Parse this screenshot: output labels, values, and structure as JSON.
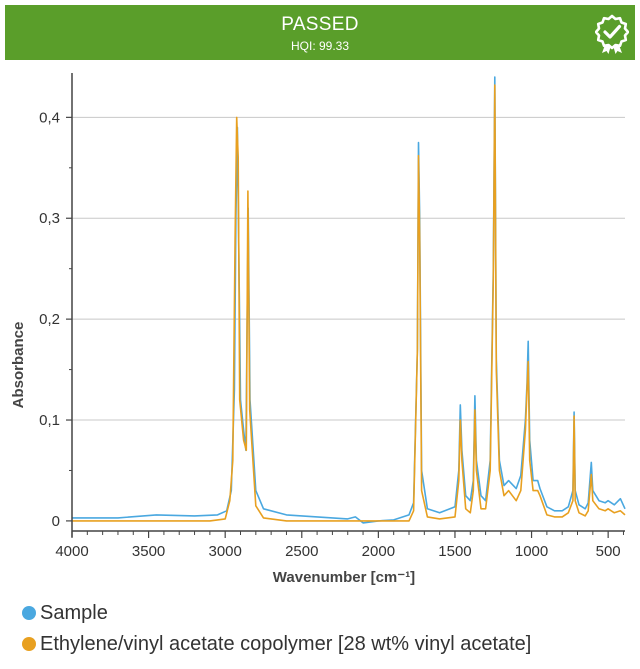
{
  "banner": {
    "status": "PASSED",
    "subtitle": "HQI: 99.33",
    "icon": "certified-badge-icon",
    "background": "#5a9e2a"
  },
  "chart_data": {
    "type": "line",
    "title": "",
    "xlabel": "Wavenumber [cm⁻¹]",
    "ylabel": "Absorbance",
    "xlim": [
      4000,
      390
    ],
    "ylim": [
      -0.01,
      0.44
    ],
    "x_inverted": true,
    "grid": true,
    "x_ticks": [
      4000,
      3500,
      3000,
      2500,
      2000,
      1500,
      1000,
      500
    ],
    "x_tick_labels": [
      "4000",
      "3500",
      "3000",
      "2500",
      "2000",
      "1500",
      "1000",
      "500"
    ],
    "y_ticks": [
      0,
      0.1,
      0.2,
      0.3,
      0.4
    ],
    "y_tick_labels": [
      "0",
      "0,1",
      "0,2",
      "0,3",
      "0,4"
    ],
    "legend_position": "bottom-left",
    "series": [
      {
        "name": "Sample",
        "color": "#4aa8e0",
        "points": [
          [
            4000,
            0.003
          ],
          [
            3700,
            0.003
          ],
          [
            3450,
            0.006
          ],
          [
            3200,
            0.005
          ],
          [
            3050,
            0.006
          ],
          [
            2990,
            0.01
          ],
          [
            2960,
            0.03
          ],
          [
            2940,
            0.13
          ],
          [
            2930,
            0.3
          ],
          [
            2920,
            0.39
          ],
          [
            2900,
            0.12
          ],
          [
            2880,
            0.09
          ],
          [
            2865,
            0.07
          ],
          [
            2850,
            0.31
          ],
          [
            2838,
            0.12
          ],
          [
            2800,
            0.03
          ],
          [
            2750,
            0.012
          ],
          [
            2600,
            0.006
          ],
          [
            2400,
            0.004
          ],
          [
            2200,
            0.002
          ],
          [
            2150,
            0.004
          ],
          [
            2100,
            -0.002
          ],
          [
            2000,
            0.0
          ],
          [
            1900,
            0.001
          ],
          [
            1800,
            0.006
          ],
          [
            1770,
            0.018
          ],
          [
            1745,
            0.17
          ],
          [
            1738,
            0.375
          ],
          [
            1730,
            0.3
          ],
          [
            1718,
            0.05
          ],
          [
            1680,
            0.012
          ],
          [
            1600,
            0.008
          ],
          [
            1500,
            0.014
          ],
          [
            1475,
            0.05
          ],
          [
            1465,
            0.115
          ],
          [
            1455,
            0.07
          ],
          [
            1430,
            0.025
          ],
          [
            1400,
            0.02
          ],
          [
            1380,
            0.04
          ],
          [
            1370,
            0.124
          ],
          [
            1360,
            0.06
          ],
          [
            1330,
            0.025
          ],
          [
            1300,
            0.02
          ],
          [
            1270,
            0.06
          ],
          [
            1250,
            0.25
          ],
          [
            1240,
            0.44
          ],
          [
            1230,
            0.16
          ],
          [
            1210,
            0.06
          ],
          [
            1180,
            0.035
          ],
          [
            1150,
            0.04
          ],
          [
            1100,
            0.032
          ],
          [
            1070,
            0.045
          ],
          [
            1040,
            0.1
          ],
          [
            1030,
            0.136
          ],
          [
            1022,
            0.178
          ],
          [
            1012,
            0.08
          ],
          [
            990,
            0.04
          ],
          [
            960,
            0.04
          ],
          [
            945,
            0.032
          ],
          [
            900,
            0.014
          ],
          [
            850,
            0.01
          ],
          [
            800,
            0.01
          ],
          [
            760,
            0.014
          ],
          [
            730,
            0.03
          ],
          [
            722,
            0.108
          ],
          [
            715,
            0.03
          ],
          [
            690,
            0.016
          ],
          [
            650,
            0.012
          ],
          [
            630,
            0.018
          ],
          [
            610,
            0.058
          ],
          [
            600,
            0.03
          ],
          [
            560,
            0.02
          ],
          [
            520,
            0.018
          ],
          [
            500,
            0.02
          ],
          [
            460,
            0.016
          ],
          [
            420,
            0.022
          ],
          [
            390,
            0.012
          ]
        ]
      },
      {
        "name": "Ethylene/vinyl acetate copolymer [28 wt% vinyl acetate]",
        "color": "#e8a020",
        "points": [
          [
            4000,
            0.0
          ],
          [
            3500,
            0.0
          ],
          [
            3100,
            0.0
          ],
          [
            3000,
            0.002
          ],
          [
            2970,
            0.02
          ],
          [
            2950,
            0.06
          ],
          [
            2935,
            0.28
          ],
          [
            2925,
            0.4
          ],
          [
            2915,
            0.36
          ],
          [
            2905,
            0.12
          ],
          [
            2880,
            0.08
          ],
          [
            2862,
            0.07
          ],
          [
            2852,
            0.327
          ],
          [
            2840,
            0.11
          ],
          [
            2800,
            0.015
          ],
          [
            2750,
            0.003
          ],
          [
            2600,
            0.0
          ],
          [
            2000,
            0.0
          ],
          [
            1800,
            0.0
          ],
          [
            1770,
            0.01
          ],
          [
            1745,
            0.17
          ],
          [
            1738,
            0.362
          ],
          [
            1730,
            0.28
          ],
          [
            1718,
            0.03
          ],
          [
            1680,
            0.004
          ],
          [
            1600,
            0.002
          ],
          [
            1500,
            0.004
          ],
          [
            1475,
            0.04
          ],
          [
            1465,
            0.1
          ],
          [
            1455,
            0.06
          ],
          [
            1430,
            0.012
          ],
          [
            1400,
            0.008
          ],
          [
            1380,
            0.03
          ],
          [
            1370,
            0.11
          ],
          [
            1360,
            0.05
          ],
          [
            1330,
            0.012
          ],
          [
            1300,
            0.012
          ],
          [
            1270,
            0.05
          ],
          [
            1250,
            0.24
          ],
          [
            1240,
            0.432
          ],
          [
            1230,
            0.15
          ],
          [
            1210,
            0.05
          ],
          [
            1180,
            0.025
          ],
          [
            1150,
            0.03
          ],
          [
            1100,
            0.02
          ],
          [
            1070,
            0.03
          ],
          [
            1040,
            0.09
          ],
          [
            1030,
            0.13
          ],
          [
            1022,
            0.158
          ],
          [
            1012,
            0.06
          ],
          [
            990,
            0.03
          ],
          [
            960,
            0.03
          ],
          [
            945,
            0.025
          ],
          [
            900,
            0.006
          ],
          [
            850,
            0.004
          ],
          [
            800,
            0.004
          ],
          [
            760,
            0.008
          ],
          [
            730,
            0.02
          ],
          [
            722,
            0.104
          ],
          [
            715,
            0.02
          ],
          [
            690,
            0.008
          ],
          [
            650,
            0.005
          ],
          [
            630,
            0.01
          ],
          [
            610,
            0.046
          ],
          [
            600,
            0.02
          ],
          [
            560,
            0.012
          ],
          [
            520,
            0.01
          ],
          [
            500,
            0.012
          ],
          [
            460,
            0.008
          ],
          [
            420,
            0.01
          ],
          [
            390,
            0.006
          ]
        ]
      }
    ]
  }
}
